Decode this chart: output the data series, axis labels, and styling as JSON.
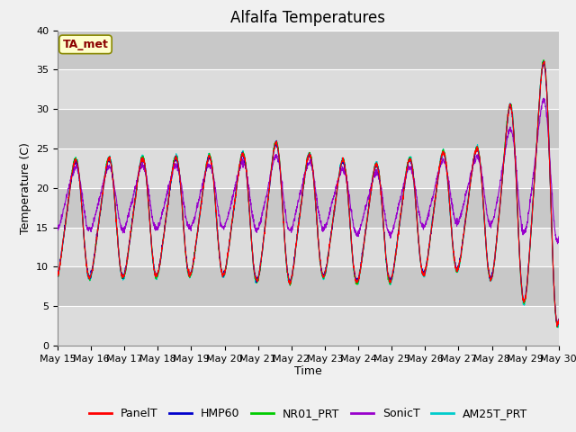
{
  "title": "Alfalfa Temperatures",
  "xlabel": "Time",
  "ylabel": "Temperature (C)",
  "ylim": [
    0,
    40
  ],
  "annotation_text": "TA_met",
  "annotation_color": "#8B0000",
  "annotation_bg": "#FFFFCC",
  "series_colors": {
    "PanelT": "#FF0000",
    "HMP60": "#0000CC",
    "NR01_PRT": "#00CC00",
    "SonicT": "#9900CC",
    "AM25T_PRT": "#00CCCC"
  },
  "x_tick_labels": [
    "May 15",
    "May 16",
    "May 17",
    "May 18",
    "May 19",
    "May 20",
    "May 21",
    "May 22",
    "May 23",
    "May 24",
    "May 25",
    "May 26",
    "May 27",
    "May 28",
    "May 29",
    "May 30"
  ],
  "bg_band_colors": [
    "#DCDCDC",
    "#C8C8C8"
  ],
  "grid_line_color": "#FFFFFF",
  "fig_bg": "#F0F0F0",
  "title_fontsize": 12,
  "axis_fontsize": 9,
  "tick_fontsize": 8,
  "legend_fontsize": 9
}
